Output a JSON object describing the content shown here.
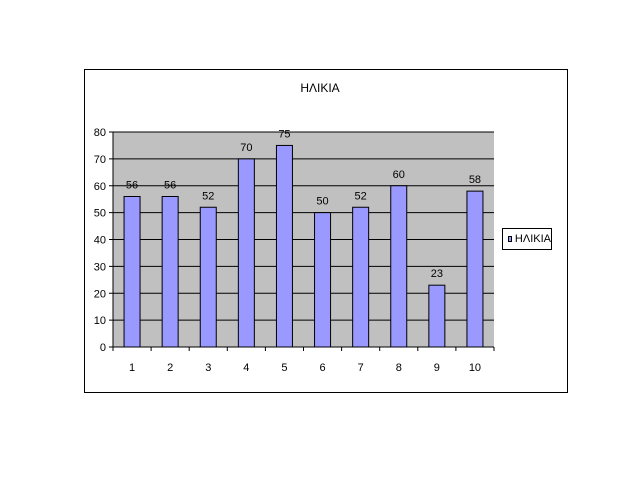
{
  "chart_data": {
    "type": "bar",
    "title": "ΗΛΙΚΙΑ",
    "xlabel": "",
    "ylabel": "",
    "categories": [
      "1",
      "2",
      "3",
      "4",
      "5",
      "6",
      "7",
      "8",
      "9",
      "10"
    ],
    "series": [
      {
        "name": "ΗΛΙΚΙΑ",
        "values": [
          56,
          56,
          52,
          70,
          75,
          50,
          52,
          60,
          23,
          58
        ]
      }
    ],
    "ylim": [
      0,
      80
    ],
    "yticks": [
      0,
      10,
      20,
      30,
      40,
      50,
      60,
      70,
      80
    ],
    "grid": true,
    "legend": "right",
    "data_labels": true,
    "colors": {
      "bar_fill": "#9999ff",
      "bar_stroke": "#000000",
      "plot_background": "#c0c0c0",
      "gridline": "#000000"
    }
  }
}
